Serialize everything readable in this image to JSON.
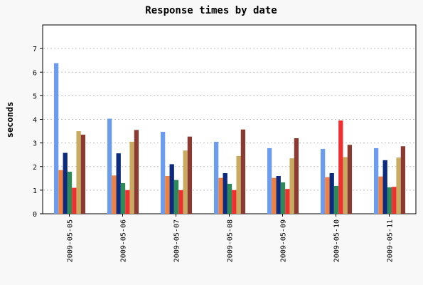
{
  "chart_data": {
    "type": "bar",
    "title": "Response times by date",
    "xlabel": "",
    "ylabel": "seconds",
    "ylim": [
      0,
      8
    ],
    "yticks": [
      0,
      1,
      2,
      3,
      4,
      5,
      6,
      7
    ],
    "grid": "horizontal-dashed",
    "legend": "none",
    "categories": [
      "2009-05-05",
      "2009-05-06",
      "2009-05-07",
      "2009-05-08",
      "2009-05-09",
      "2009-05-10",
      "2009-05-11"
    ],
    "series": [
      {
        "color": "#6b9cf0",
        "values": [
          6.38,
          4.03,
          3.47,
          3.05,
          2.78,
          2.75,
          2.78
        ]
      },
      {
        "color": "#f08040",
        "values": [
          1.85,
          1.62,
          1.6,
          1.52,
          1.52,
          1.55,
          1.58
        ]
      },
      {
        "color": "#0b2a80",
        "values": [
          2.58,
          2.56,
          2.1,
          1.72,
          1.6,
          1.72,
          2.27
        ]
      },
      {
        "color": "#2e8b57",
        "values": [
          1.78,
          1.3,
          1.43,
          1.27,
          1.33,
          1.18,
          1.12
        ]
      },
      {
        "color": "#f03030",
        "values": [
          1.1,
          1.0,
          1.0,
          1.0,
          1.05,
          3.95,
          1.14
        ]
      },
      {
        "color": "#c8aa60",
        "values": [
          3.5,
          3.05,
          2.68,
          2.45,
          2.35,
          2.4,
          2.38
        ]
      },
      {
        "color": "#8b3a32",
        "values": [
          3.35,
          3.55,
          3.27,
          3.57,
          3.2,
          2.92,
          2.86
        ]
      }
    ]
  }
}
